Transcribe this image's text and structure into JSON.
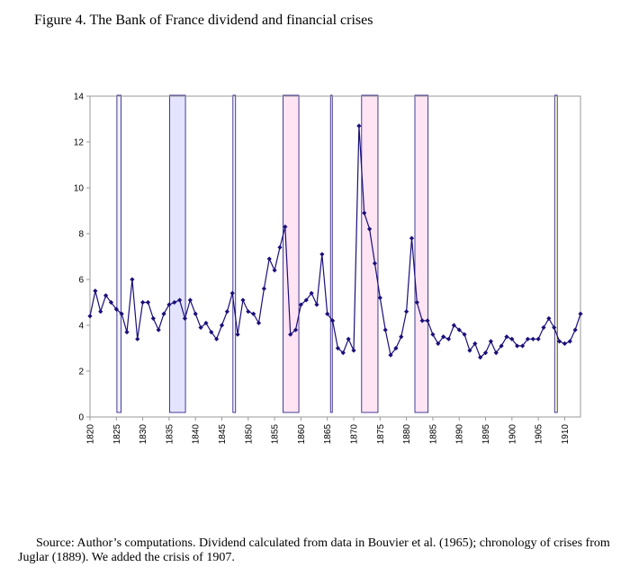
{
  "title": "Figure 4. The Bank of France dividend and financial crises",
  "source": "Source: Author’s computations. Dividend calculated from data in Bouvier et al. (1965); chronology of crises from Juglar (1889). We added the crisis of 1907.",
  "chart_data": {
    "type": "line",
    "title": "",
    "xlabel": "",
    "ylabel": "",
    "xlim": [
      1820,
      1913
    ],
    "ylim": [
      0,
      14
    ],
    "yticks": [
      0,
      2,
      4,
      6,
      8,
      10,
      12,
      14
    ],
    "xticks": [
      1820,
      1825,
      1830,
      1835,
      1840,
      1845,
      1850,
      1855,
      1860,
      1865,
      1870,
      1875,
      1880,
      1885,
      1890,
      1895,
      1900,
      1905,
      1910
    ],
    "grid": false,
    "legend": "none",
    "colors": {
      "line": "#1a0f7a",
      "marker": "#1a0f7a",
      "frame": "#9a9a9a"
    },
    "series": [
      {
        "x": [
          1820,
          1821,
          1822,
          1823,
          1824,
          1825,
          1826,
          1827,
          1828,
          1829,
          1830,
          1831,
          1832,
          1833,
          1834,
          1835,
          1836,
          1837,
          1838,
          1839,
          1840,
          1841,
          1842,
          1843,
          1844,
          1845,
          1846,
          1847,
          1848,
          1849,
          1850,
          1851,
          1852,
          1853,
          1854,
          1855,
          1856,
          1857,
          1858,
          1859,
          1860,
          1861,
          1862,
          1863,
          1864,
          1865,
          1866,
          1867,
          1868,
          1869,
          1870,
          1871,
          1872,
          1873,
          1874,
          1875,
          1876,
          1877,
          1878,
          1879,
          1880,
          1881,
          1882,
          1883,
          1884,
          1885,
          1886,
          1887,
          1888,
          1889,
          1890,
          1891,
          1892,
          1893,
          1894,
          1895,
          1896,
          1897,
          1898,
          1899,
          1900,
          1901,
          1902,
          1903,
          1904,
          1905,
          1906,
          1907,
          1908,
          1909,
          1910,
          1911,
          1912,
          1913
        ],
        "values": [
          4.4,
          5.5,
          4.6,
          5.3,
          5.0,
          4.7,
          4.5,
          3.7,
          6.0,
          3.4,
          5.0,
          5.0,
          4.3,
          3.8,
          4.5,
          4.9,
          5.0,
          5.1,
          4.3,
          5.1,
          4.5,
          3.9,
          4.1,
          3.7,
          3.4,
          4.0,
          4.6,
          5.4,
          3.6,
          5.1,
          4.6,
          4.5,
          4.1,
          5.6,
          6.9,
          6.4,
          7.4,
          8.3,
          3.6,
          3.8,
          4.9,
          5.1,
          5.4,
          4.9,
          7.1,
          4.5,
          4.2,
          3.0,
          2.8,
          3.4,
          2.9,
          12.7,
          8.9,
          8.2,
          6.7,
          5.2,
          3.8,
          2.7,
          3.0,
          3.5,
          4.6,
          7.8,
          5.0,
          4.2,
          4.2,
          3.6,
          3.2,
          3.5,
          3.4,
          4.0,
          3.8,
          3.6,
          2.9,
          3.2,
          2.6,
          2.8,
          3.3,
          2.8,
          3.1,
          3.5,
          3.4,
          3.1,
          3.1,
          3.4,
          3.4,
          3.4,
          3.9,
          4.3,
          3.9,
          3.3,
          3.2,
          3.3,
          3.8,
          4.5
        ]
      }
    ],
    "crises": [
      {
        "start": 1825.1,
        "end": 1825.9,
        "color": "#f0f0ff",
        "border": "#1a0f7a"
      },
      {
        "start": 1835.1,
        "end": 1838.1,
        "color": "#e4e4ff",
        "border": "#1a0f7a"
      },
      {
        "start": 1847.1,
        "end": 1847.6,
        "color": "#f4f4ff",
        "border": "#1a0f7a"
      },
      {
        "start": 1856.6,
        "end": 1859.6,
        "color": "#ffe4f4",
        "border": "#1a0f7a"
      },
      {
        "start": 1865.6,
        "end": 1865.9,
        "color": "#ffeef8",
        "border": "#1a0f7a"
      },
      {
        "start": 1871.5,
        "end": 1874.6,
        "color": "#ffe4f4",
        "border": "#1a0f7a"
      },
      {
        "start": 1881.6,
        "end": 1884.1,
        "color": "#ffe4f4",
        "border": "#1a0f7a"
      },
      {
        "start": 1908.1,
        "end": 1908.6,
        "color": "#ffffd0",
        "border": "#1a0f7a"
      }
    ]
  }
}
